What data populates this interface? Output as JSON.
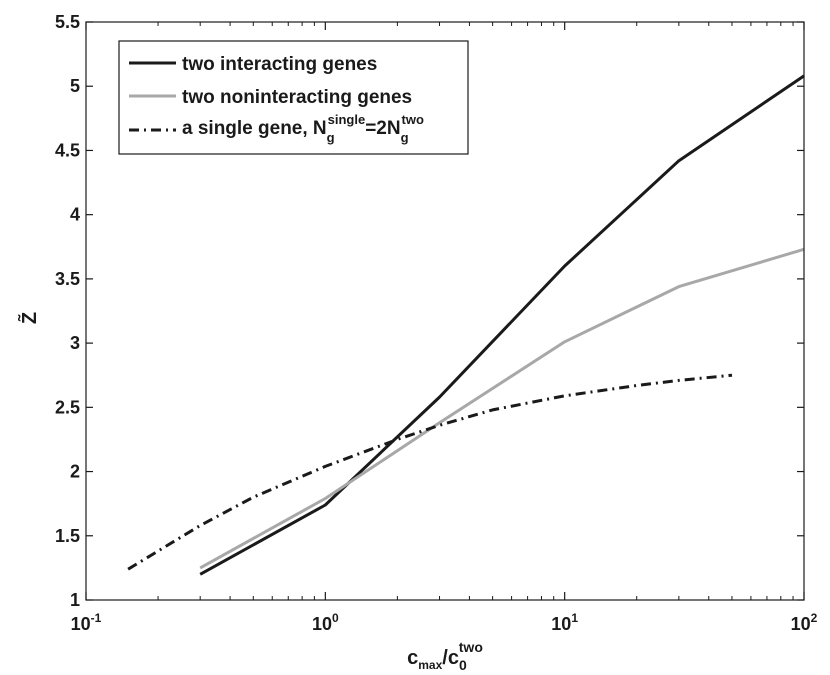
{
  "chart_data": {
    "type": "line",
    "xscale": "log",
    "xlim": [
      0.1,
      100
    ],
    "ylim": [
      1,
      5.5
    ],
    "xticks": [
      {
        "base": "10",
        "exp": "-1",
        "value": 0.1
      },
      {
        "base": "10",
        "exp": "0",
        "value": 1
      },
      {
        "base": "10",
        "exp": "1",
        "value": 10
      },
      {
        "base": "10",
        "exp": "2",
        "value": 100
      }
    ],
    "yticks": [
      "1",
      "1.5",
      "2",
      "2.5",
      "3",
      "3.5",
      "4",
      "4.5",
      "5",
      "5.5"
    ],
    "ytick_values": [
      1,
      1.5,
      2,
      2.5,
      3,
      3.5,
      4,
      4.5,
      5,
      5.5
    ],
    "ylabel": "Z̃",
    "xlabel": {
      "main": "c",
      "sub1": "max",
      "slash": "/c",
      "sub2": "0",
      "sup2": "two"
    },
    "series": [
      {
        "name": "two interacting genes",
        "color": "#1a1a1a",
        "dash": "solid",
        "x": [
          0.3,
          1,
          3,
          10,
          30,
          100
        ],
        "y": [
          1.2,
          1.74,
          2.58,
          3.6,
          4.42,
          5.08
        ]
      },
      {
        "name": "two noninteracting genes",
        "color": "#a8a8a8",
        "dash": "solid",
        "x": [
          0.3,
          1,
          3,
          10,
          30,
          100
        ],
        "y": [
          1.25,
          1.79,
          2.38,
          3.01,
          3.44,
          3.73
        ]
      },
      {
        "name": "a single gene, N_g^single=2N_g^two",
        "color": "#1a1a1a",
        "dash": "dashdot",
        "x": [
          0.15,
          0.3,
          0.5,
          1,
          2,
          3,
          5,
          10,
          20,
          30,
          50
        ],
        "y": [
          1.24,
          1.58,
          1.8,
          2.04,
          2.25,
          2.36,
          2.48,
          2.59,
          2.67,
          2.71,
          2.75
        ]
      }
    ],
    "legend": {
      "position": "top-left",
      "entries": [
        {
          "text": "two interacting genes"
        },
        {
          "text": "two noninteracting genes"
        },
        {
          "pre": "a single gene, N",
          "sub1": "g",
          "sup1": "single",
          "mid": "=2N",
          "sub2": "g",
          "sup2": "two"
        }
      ]
    }
  }
}
